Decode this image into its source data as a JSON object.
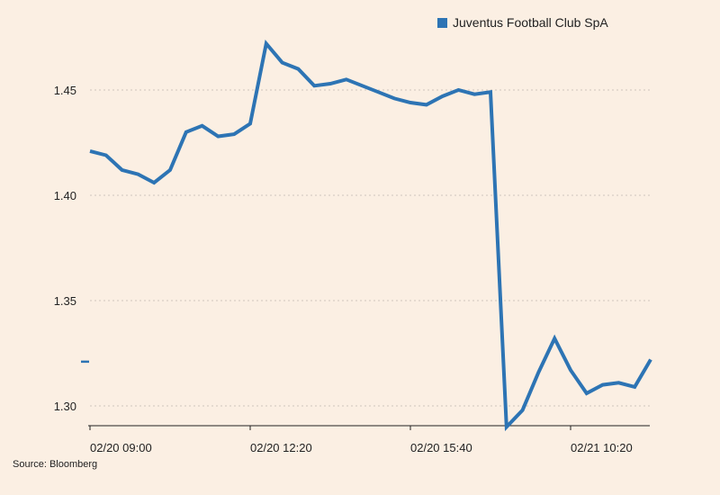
{
  "chart_data": {
    "type": "line",
    "title": "",
    "xlabel": "",
    "ylabel": "",
    "ylim": [
      1.29,
      1.47
    ],
    "yticks": [
      1.3,
      1.35,
      1.4,
      1.45
    ],
    "ytick_labels": [
      "1.30",
      "1.35",
      "1.40",
      "1.45"
    ],
    "xtick_labels": [
      "02/20 09:00",
      "02/20 12:20",
      "02/20 15:40",
      "02/21 10:20"
    ],
    "xtick_index": [
      0,
      10,
      20,
      30
    ],
    "grid": true,
    "legend_position": "top-right",
    "series": [
      {
        "name": "Juventus Football Club SpA",
        "color": "#2d74b4",
        "values": [
          1.421,
          1.419,
          1.412,
          1.41,
          1.406,
          1.412,
          1.43,
          1.433,
          1.428,
          1.429,
          1.434,
          1.472,
          1.463,
          1.46,
          1.452,
          1.453,
          1.455,
          1.452,
          1.449,
          1.446,
          1.444,
          1.443,
          1.447,
          1.45,
          1.448,
          1.449,
          1.29,
          1.298,
          1.316,
          1.332,
          1.317,
          1.306,
          1.31,
          1.311,
          1.309,
          1.322
        ]
      }
    ],
    "previous_close_marker": 1.321
  },
  "legend": {
    "label": "Juventus Football Club SpA"
  },
  "source": "Source: Bloomberg"
}
